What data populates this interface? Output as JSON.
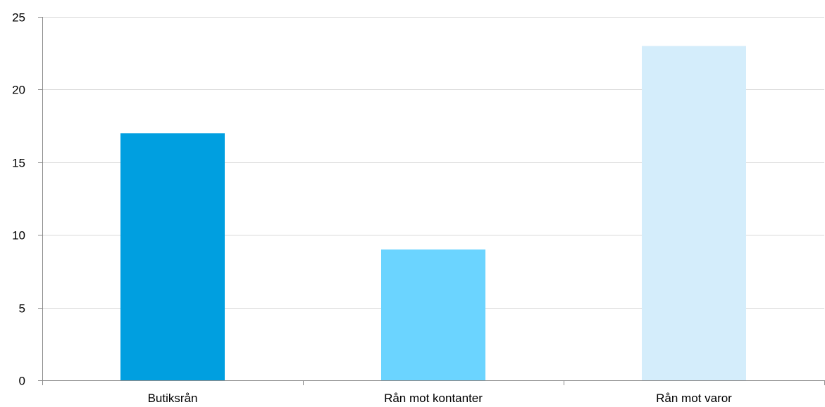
{
  "chart_data": {
    "type": "bar",
    "categories": [
      "Butiksrån",
      "Rån mot kontanter",
      "Rån mot varor"
    ],
    "values": [
      17,
      9,
      23
    ],
    "bar_colors": [
      "#009fe0",
      "#6bd4ff",
      "#d4edfb"
    ],
    "title": "",
    "xlabel": "",
    "ylabel": "",
    "ylim": [
      0,
      25
    ],
    "yticks": [
      0,
      5,
      10,
      15,
      20,
      25
    ],
    "grid": true,
    "legend": "none",
    "colors": {
      "grid": "#d9d9d9",
      "axis": "#8c8c8c",
      "text": "#000000"
    }
  }
}
